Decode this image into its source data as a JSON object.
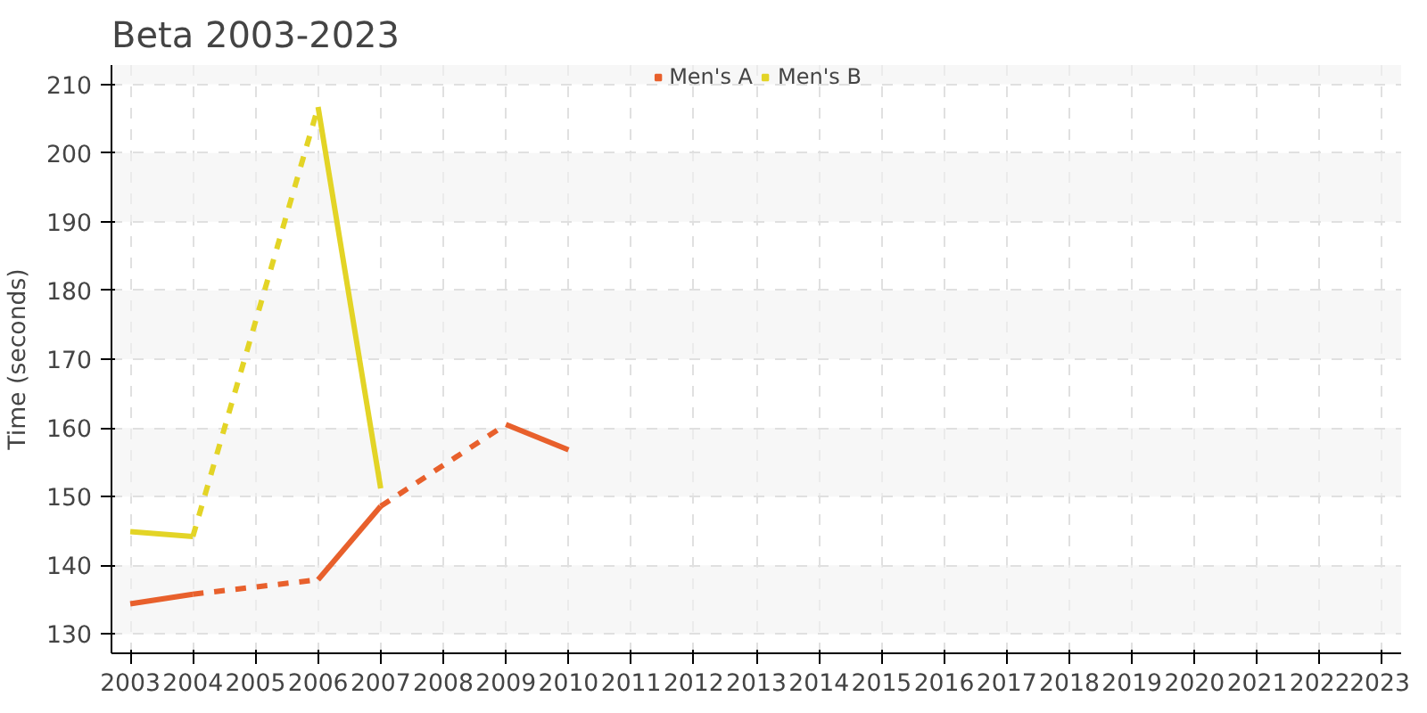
{
  "chart_data": {
    "type": "line",
    "title": "Beta 2003-2023",
    "ylabel": "Time (seconds)",
    "x": [
      2003,
      2004,
      2005,
      2006,
      2007,
      2008,
      2009,
      2010
    ],
    "series": [
      {
        "name": "Men's A",
        "color": "#e8602c",
        "values": [
          134.4,
          135.8,
          null,
          137.9,
          148.6,
          null,
          160.5,
          156.8
        ]
      },
      {
        "name": "Men's B",
        "color": "#e3d426",
        "values": [
          144.9,
          144.2,
          null,
          206.7,
          151.2,
          null,
          null,
          null
        ]
      }
    ],
    "xlim": [
      2002.7,
      2023.3
    ],
    "xticks": [
      2003,
      2004,
      2005,
      2006,
      2007,
      2008,
      2009,
      2010,
      2011,
      2012,
      2013,
      2014,
      2015,
      2016,
      2017,
      2018,
      2019,
      2020,
      2021,
      2022,
      2023
    ],
    "ylim": [
      127.2,
      212.8
    ],
    "yticks": [
      130,
      140,
      150,
      160,
      170,
      180,
      190,
      200,
      210
    ],
    "grid": true,
    "legend": "top"
  }
}
